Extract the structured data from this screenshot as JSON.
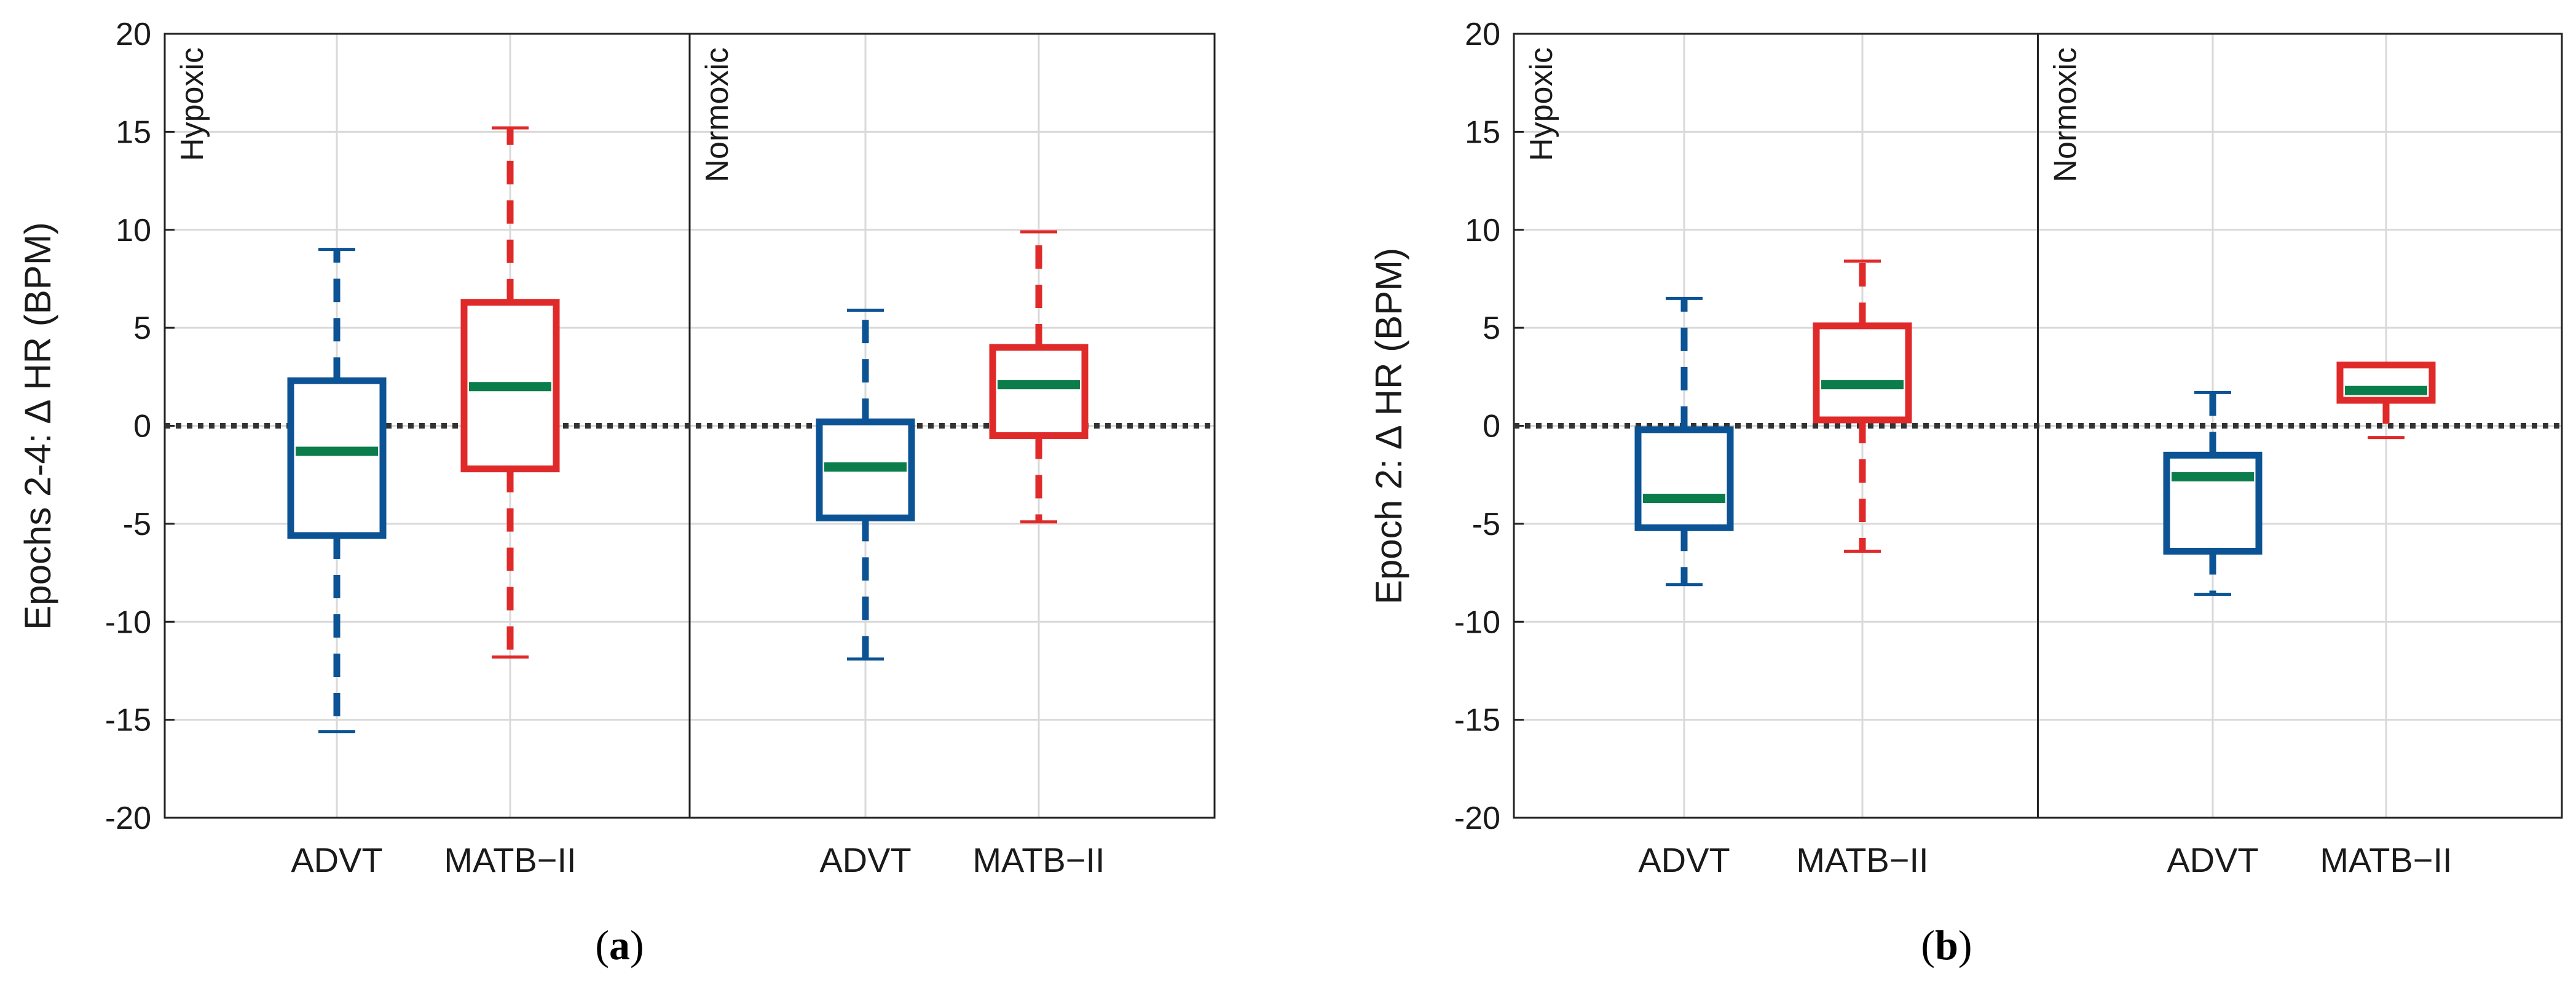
{
  "colors": {
    "advt": "#0b5394",
    "matb": "#e02a2a",
    "median": "#0a7d4a",
    "axis": "#222222",
    "grid": "#d9d9d9"
  },
  "chart_data": [
    {
      "type": "box",
      "panel_label": "a",
      "ylabel": "Epochs 2-4: ∆ HR (BPM)",
      "ylim": [
        -20,
        20
      ],
      "yticks": [
        -20,
        -15,
        -10,
        -5,
        0,
        5,
        10,
        15,
        20
      ],
      "reference_line": 0,
      "groups": [
        {
          "label": "Hypoxic",
          "boxes": [
            {
              "name": "ADVT",
              "whisker_low": -15.6,
              "q1": -5.6,
              "median": -1.3,
              "q3": 2.3,
              "whisker_high": 9.0
            },
            {
              "name": "MATB−II",
              "whisker_low": -11.8,
              "q1": -2.2,
              "median": 2.0,
              "q3": 6.3,
              "whisker_high": 15.2
            }
          ]
        },
        {
          "label": "Normoxic",
          "boxes": [
            {
              "name": "ADVT",
              "whisker_low": -11.9,
              "q1": -4.7,
              "median": -2.1,
              "q3": 0.2,
              "whisker_high": 5.9
            },
            {
              "name": "MATB−II",
              "whisker_low": -4.9,
              "q1": -0.5,
              "median": 2.1,
              "q3": 4.0,
              "whisker_high": 9.9
            }
          ]
        }
      ]
    },
    {
      "type": "box",
      "panel_label": "b",
      "ylabel": "Epoch 2: ∆ HR (BPM)",
      "ylim": [
        -20,
        20
      ],
      "yticks": [
        -20,
        -15,
        -10,
        -5,
        0,
        5,
        10,
        15,
        20
      ],
      "reference_line": 0,
      "groups": [
        {
          "label": "Hypoxic",
          "boxes": [
            {
              "name": "ADVT",
              "whisker_low": -8.1,
              "q1": -5.2,
              "median": -3.7,
              "q3": -0.2,
              "whisker_high": 6.5
            },
            {
              "name": "MATB−II",
              "whisker_low": -6.4,
              "q1": 0.3,
              "median": 2.1,
              "q3": 5.1,
              "whisker_high": 8.4
            }
          ]
        },
        {
          "label": "Normoxic",
          "boxes": [
            {
              "name": "ADVT",
              "whisker_low": -8.6,
              "q1": -6.4,
              "median": -2.6,
              "q3": -1.5,
              "whisker_high": 1.7
            },
            {
              "name": "MATB−II",
              "whisker_low": -0.6,
              "q1": 1.3,
              "median": 1.8,
              "q3": 3.1,
              "whisker_high": 3.1
            }
          ]
        }
      ]
    }
  ]
}
